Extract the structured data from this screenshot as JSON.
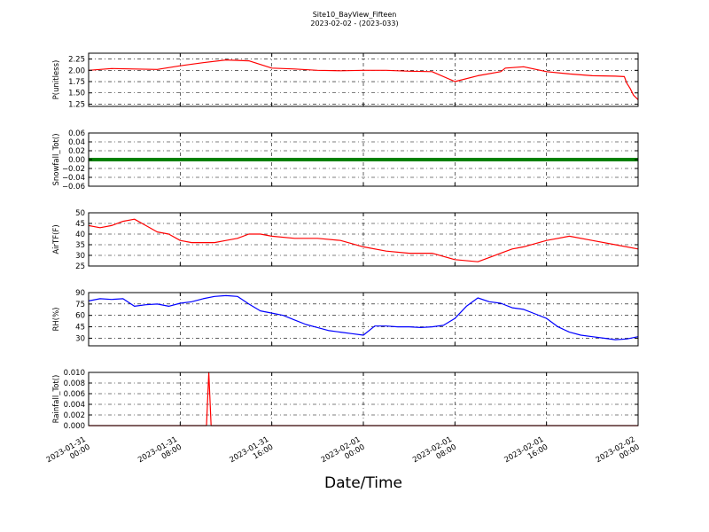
{
  "figure": {
    "title_line1": "Site10_BayView_Fifteen",
    "title_line2": "2023-02-02 - (2023-033)",
    "xlabel": "Date/Time"
  },
  "chart_data": [
    {
      "type": "line",
      "ylabel": "P(unitless)",
      "ylim": [
        1.2,
        2.38
      ],
      "yticks": [
        1.25,
        1.5,
        1.75,
        2.0,
        2.25
      ],
      "ytick_labels": [
        "1.25",
        "1.50",
        "1.75",
        "2.00",
        "2.25"
      ],
      "color": "#ff0000",
      "grid": true,
      "x_hours": [
        0,
        2,
        4,
        6,
        8,
        10,
        12,
        14,
        16,
        18,
        20,
        22,
        24,
        26,
        28,
        30,
        32,
        34,
        36,
        36.4,
        38,
        40,
        42,
        44,
        46,
        46.8,
        47.0,
        47.3,
        47.6,
        48
      ],
      "y": [
        2.0,
        2.04,
        2.03,
        2.02,
        2.1,
        2.17,
        2.23,
        2.21,
        2.05,
        2.03,
        2.0,
        1.99,
        2.0,
        2.0,
        1.98,
        1.97,
        1.75,
        1.88,
        1.97,
        2.05,
        2.08,
        1.97,
        1.92,
        1.88,
        1.87,
        1.86,
        1.72,
        1.6,
        1.45,
        1.35
      ]
    },
    {
      "type": "line",
      "ylabel": "Snowfall_Tot()",
      "ylim": [
        -0.06,
        0.06
      ],
      "yticks": [
        -0.06,
        -0.04,
        -0.02,
        0.0,
        0.02,
        0.04,
        0.06
      ],
      "ytick_labels": [
        "−0.06",
        "−0.04",
        "−0.02",
        "0.00",
        "0.02",
        "0.04",
        "0.06"
      ],
      "color": "#008000",
      "grid": true,
      "x_hours": [
        0,
        48
      ],
      "y": [
        0,
        0
      ]
    },
    {
      "type": "line",
      "ylabel": "AirTF(F)",
      "ylim": [
        25,
        50
      ],
      "yticks": [
        25,
        30,
        35,
        40,
        45,
        50
      ],
      "ytick_labels": [
        "25",
        "30",
        "35",
        "40",
        "45",
        "50"
      ],
      "color": "#ff0000",
      "grid": true,
      "x_hours": [
        0,
        1,
        2,
        3,
        4,
        5,
        6,
        7,
        8,
        9,
        10,
        11,
        12,
        13,
        14,
        15,
        16,
        18,
        20,
        22,
        24,
        26,
        28,
        30,
        32,
        34,
        35,
        36,
        37,
        38,
        40,
        42,
        44,
        46,
        48
      ],
      "y": [
        44,
        43,
        44,
        46,
        47,
        44,
        41,
        40,
        37,
        36,
        36,
        36,
        37,
        38,
        40,
        40,
        39,
        38,
        38,
        37,
        34,
        32,
        31,
        31,
        28,
        27,
        29,
        31,
        33,
        34,
        37,
        39,
        37,
        35,
        33
      ]
    },
    {
      "type": "line",
      "ylabel": "RH(%)",
      "ylim": [
        20,
        90
      ],
      "yticks": [
        30,
        45,
        60,
        75,
        90
      ],
      "ytick_labels": [
        "30",
        "45",
        "60",
        "75",
        "90"
      ],
      "color": "#0000ff",
      "grid": true,
      "x_hours": [
        0,
        1,
        2,
        3,
        4,
        5,
        6,
        7,
        8,
        9,
        10,
        11,
        12,
        13,
        14,
        15,
        16,
        17,
        18,
        19,
        20,
        21,
        22,
        23,
        24,
        25,
        26,
        27,
        28,
        29,
        30,
        31,
        32,
        33,
        34,
        35,
        36,
        37,
        38,
        39,
        40,
        41,
        42,
        43,
        44,
        45,
        46,
        47,
        48
      ],
      "y": [
        79,
        82,
        81,
        82,
        72,
        74,
        75,
        72,
        76,
        78,
        82,
        85,
        86,
        85,
        75,
        66,
        63,
        60,
        54,
        48,
        44,
        40,
        38,
        36,
        34,
        46,
        46,
        45,
        45,
        44,
        45,
        47,
        56,
        72,
        83,
        78,
        76,
        70,
        68,
        62,
        56,
        45,
        38,
        34,
        32,
        30,
        28,
        29,
        32
      ]
    },
    {
      "type": "line",
      "ylabel": "Rainfall_Tot()",
      "ylim": [
        0,
        0.01
      ],
      "yticks": [
        0.0,
        0.002,
        0.004,
        0.006,
        0.008,
        0.01
      ],
      "ytick_labels": [
        "0.000",
        "0.002",
        "0.004",
        "0.006",
        "0.008",
        "0.010"
      ],
      "color": "#ff0000",
      "grid": true,
      "x_hours": [
        0,
        10.3,
        10.5,
        10.7,
        48
      ],
      "y": [
        0,
        0,
        0.01,
        0,
        0
      ]
    }
  ],
  "xaxis": {
    "xlim_hours": [
      0,
      48
    ],
    "tick_hours": [
      0,
      8,
      16,
      24,
      32,
      40,
      48
    ],
    "tick_line1": [
      "2023-01-31",
      "2023-01-31",
      "2023-01-31",
      "2023-02-01",
      "2023-02-01",
      "2023-02-01",
      "2023-02-02"
    ],
    "tick_line2": [
      "00:00",
      "08:00",
      "16:00",
      "00:00",
      "08:00",
      "16:00",
      "00:00"
    ]
  }
}
